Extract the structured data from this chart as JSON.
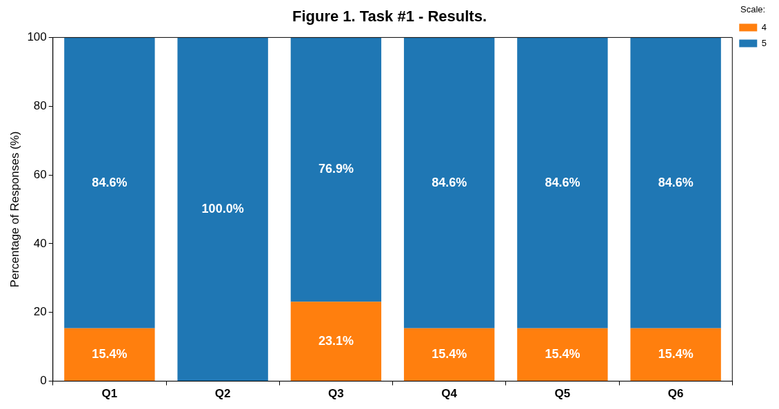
{
  "chart_data": {
    "type": "bar",
    "title": "Figure 1. Task #1 - Results.",
    "ylabel": "Percentage of Responses (%)",
    "legend_title": "Scale:",
    "categories": [
      "Q1",
      "Q2",
      "Q3",
      "Q4",
      "Q5",
      "Q6"
    ],
    "stacked": true,
    "series": [
      {
        "name": "4",
        "color": "#ff7f0e",
        "values": [
          15.4,
          0,
          23.1,
          15.4,
          15.4,
          15.4
        ],
        "value_labels": [
          "15.4%",
          null,
          "23.1%",
          "15.4%",
          "15.4%",
          "15.4%"
        ]
      },
      {
        "name": "5",
        "color": "#1f77b4",
        "values": [
          84.6,
          100,
          76.9,
          84.6,
          84.6,
          84.6
        ],
        "value_labels": [
          "84.6%",
          "100.0%",
          "76.9%",
          "84.6%",
          "84.6%",
          "84.6%"
        ]
      }
    ],
    "ylim": [
      0,
      100
    ],
    "yticks": [
      0,
      20,
      40,
      60,
      80,
      100
    ],
    "grid": false,
    "legend": "top right"
  }
}
